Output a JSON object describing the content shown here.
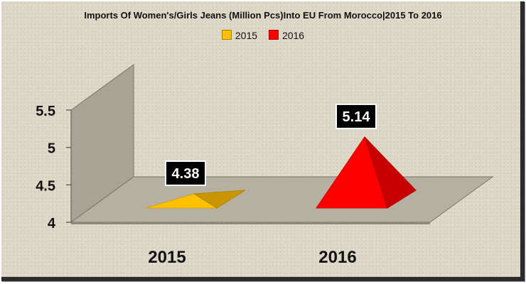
{
  "chart_data": {
    "type": "bar",
    "title": "Imports Of Women's/Girls Jeans (Million Pcs)Into EU From Morocco|2015 To 2016",
    "categories": [
      "2015",
      "2016"
    ],
    "series": [
      {
        "name": "2015",
        "values": [
          4.38,
          null
        ],
        "color": "#ffc000"
      },
      {
        "name": "2016",
        "values": [
          null,
          5.14
        ],
        "color": "#ff0000"
      }
    ],
    "data_labels": [
      "4.38",
      "5.14"
    ],
    "y_ticks": [
      "4",
      "4.5",
      "5",
      "5.5"
    ],
    "ylim": [
      4,
      5.5
    ],
    "legend_position": "top-center",
    "shape": "3d-pyramid",
    "background": "#ded8c8",
    "wall_color": "#a9a395",
    "floor_color": "#b6b0a2"
  }
}
